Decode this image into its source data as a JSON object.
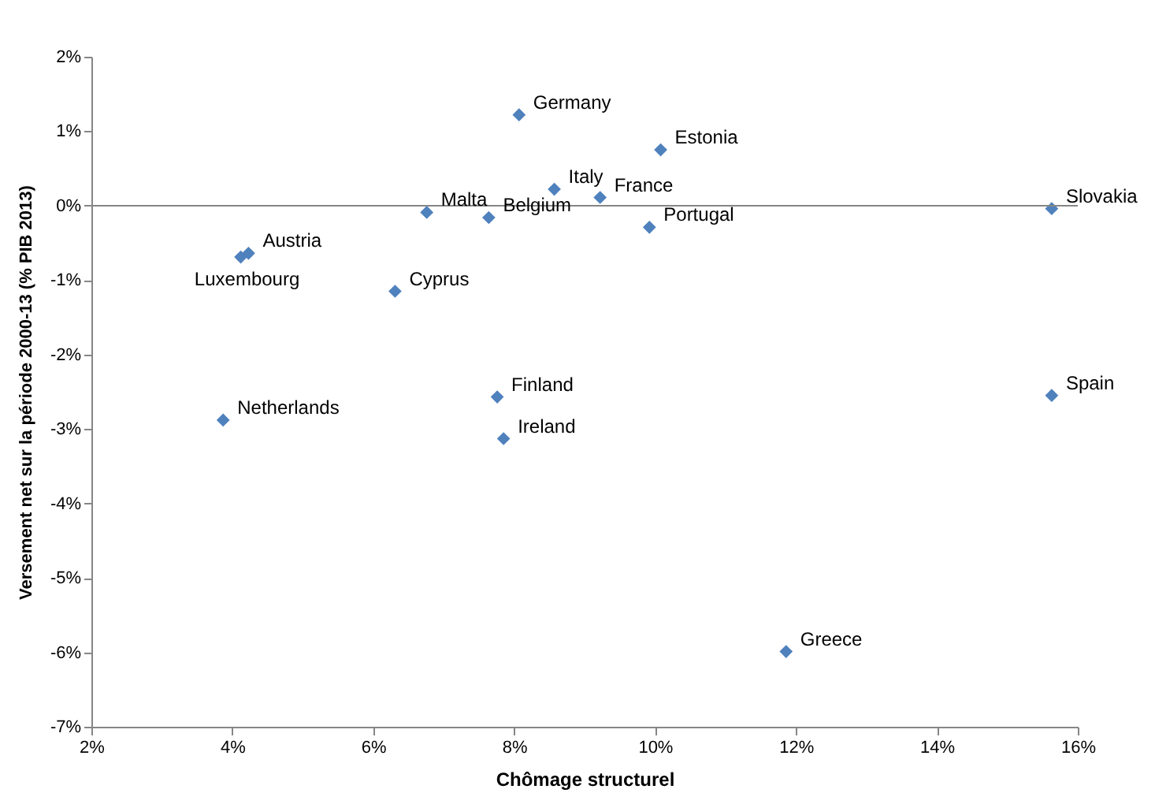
{
  "chart_data": {
    "type": "scatter",
    "xlabel": "Chômage structurel",
    "ylabel": "Versement net sur la période 2000-13 (% PIB 2013)",
    "x": [
      8.07,
      10.08,
      8.57,
      9.22,
      15.63,
      6.76,
      7.64,
      9.92,
      4.23,
      4.12,
      6.31,
      7.76,
      7.85,
      3.87,
      15.63,
      11.86
    ],
    "series": [
      {
        "color": "#4f81bd",
        "values": [
          1.22,
          0.75,
          0.22,
          0.11,
          -0.04,
          -0.09,
          -0.16,
          -0.29,
          -0.64,
          -0.69,
          -1.15,
          -2.57,
          -3.13,
          -2.88,
          -2.55,
          -5.99
        ]
      }
    ],
    "annotations": [
      {
        "text": "Germany",
        "x": 8.07,
        "y": 1.22
      },
      {
        "text": "Estonia",
        "x": 10.08,
        "y": 0.75
      },
      {
        "text": "Italy",
        "x": 8.57,
        "y": 0.22
      },
      {
        "text": "France",
        "x": 9.22,
        "y": 0.11
      },
      {
        "text": "Slovakia",
        "x": 15.63,
        "y": -0.04
      },
      {
        "text": "Malta",
        "x": 6.76,
        "y": -0.09
      },
      {
        "text": "Belgium",
        "x": 7.64,
        "y": -0.16
      },
      {
        "text": "Portugal",
        "x": 9.92,
        "y": -0.29
      },
      {
        "text": "Austria",
        "x": 4.23,
        "y": -0.64
      },
      {
        "text": "Luxembourg",
        "x": 4.12,
        "y": -0.69
      },
      {
        "text": "Cyprus",
        "x": 6.31,
        "y": -1.15
      },
      {
        "text": "Finland",
        "x": 7.76,
        "y": -2.57
      },
      {
        "text": "Ireland",
        "x": 7.85,
        "y": -3.13
      },
      {
        "text": "Netherlands",
        "x": 3.87,
        "y": -2.88
      },
      {
        "text": "Spain",
        "x": 15.63,
        "y": -2.55
      },
      {
        "text": "Greece",
        "x": 11.86,
        "y": -5.99
      }
    ],
    "xlim": [
      2,
      16
    ],
    "xticks": [
      {
        "value": 2,
        "label": "2%"
      },
      {
        "value": 4,
        "label": "4%"
      },
      {
        "value": 6,
        "label": "6%"
      },
      {
        "value": 8,
        "label": "8%"
      },
      {
        "value": 10,
        "label": "10%"
      },
      {
        "value": 12,
        "label": "12%"
      },
      {
        "value": 14,
        "label": "14%"
      },
      {
        "value": 16,
        "label": "16%"
      }
    ],
    "ylim": [
      -7,
      2
    ],
    "yticks": [
      {
        "value": -7,
        "label": "-7%"
      },
      {
        "value": -6,
        "label": "-6%"
      },
      {
        "value": -5,
        "label": "-5%"
      },
      {
        "value": -4,
        "label": "-4%"
      },
      {
        "value": -3,
        "label": "-3%"
      },
      {
        "value": -2,
        "label": "-2%"
      },
      {
        "value": -1,
        "label": "-1%"
      },
      {
        "value": 0,
        "label": "0%"
      },
      {
        "value": 1,
        "label": "1%"
      },
      {
        "value": 2,
        "label": "2%"
      }
    ],
    "ref_lines": [
      {
        "axis": "y",
        "value": 0,
        "color": "#868686"
      }
    ],
    "marker": "diamond",
    "grid": false
  }
}
